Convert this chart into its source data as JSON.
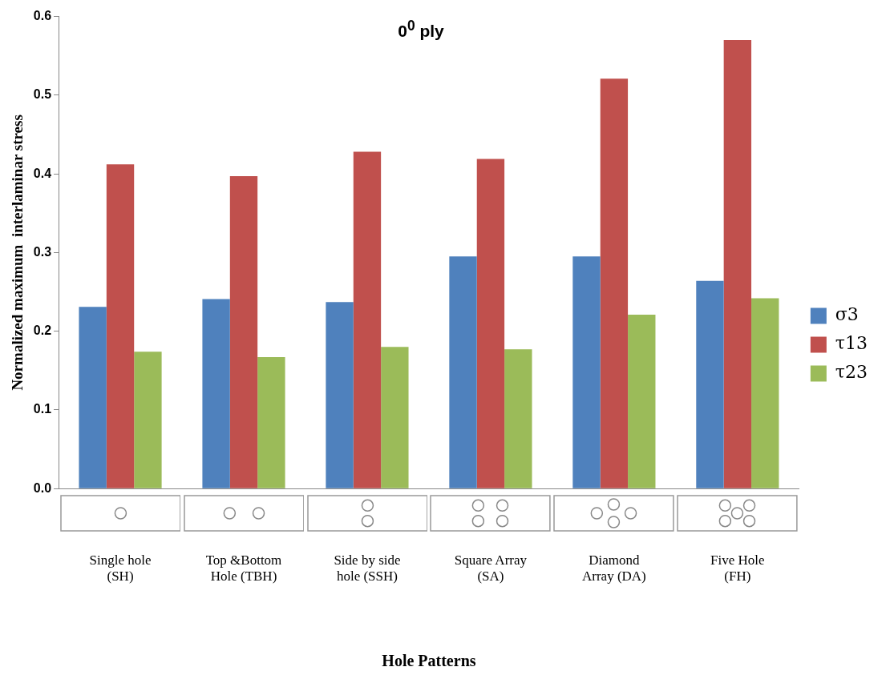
{
  "chart_data": {
    "type": "bar",
    "title": "0$^{0}$ ply",
    "xlabel": "Hole Patterns",
    "ylabel": "Normalized maximum  interlaminar stress",
    "categories": [
      "Single hole (SH)",
      "Top &Bottom Hole (TBH)",
      "Side by side hole (SSH)",
      "Square Array (SA)",
      "Diamond Array (DA)",
      "Five Hole (FH)"
    ],
    "series": [
      {
        "name": "σ3",
        "color": "#4f81bd",
        "values": [
          0.231,
          0.241,
          0.237,
          0.295,
          0.295,
          0.264
        ]
      },
      {
        "name": "τ13",
        "color": "#c0504d",
        "values": [
          0.412,
          0.397,
          0.428,
          0.419,
          0.521,
          0.57
        ]
      },
      {
        "name": "τ23",
        "color": "#9bbb59",
        "values": [
          0.174,
          0.167,
          0.18,
          0.177,
          0.221,
          0.242
        ]
      }
    ],
    "ylim": [
      0,
      0.6
    ],
    "yticks": [
      {
        "value": 0,
        "label": "0.0"
      },
      0.1,
      0.2,
      0.3,
      0.4,
      0.5,
      0.6
    ],
    "grid": false,
    "legend": "right"
  }
}
